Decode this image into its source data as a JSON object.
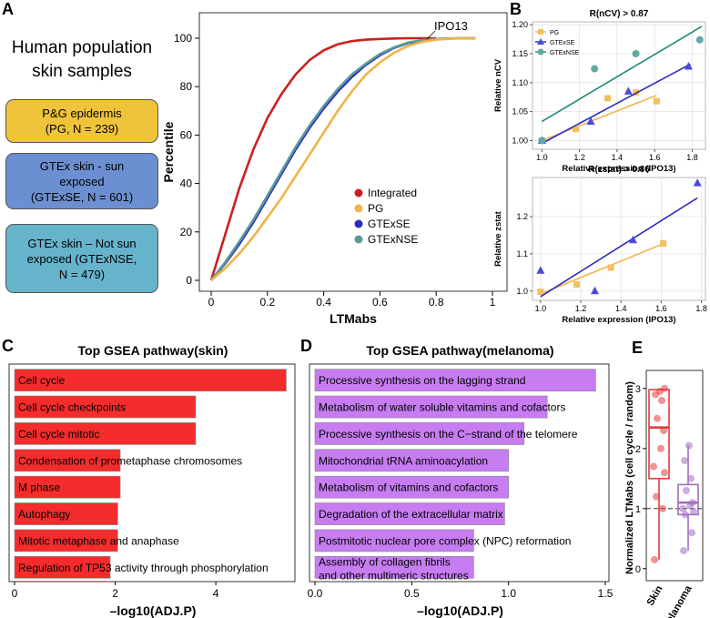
{
  "panel_letters": {
    "a": "A",
    "b": "B",
    "c": "C",
    "d": "D",
    "e": "E"
  },
  "intro": {
    "title_line1": "Human population",
    "title_line2": "skin samples",
    "boxes": [
      {
        "line1": "P&G epidermis",
        "line2": "(PG, N = 239)",
        "line3": "",
        "color": "#f0c43a"
      },
      {
        "line1": "GTEx skin - sun",
        "line2": "exposed",
        "line3": "(GTExSE, N = 601)",
        "color": "#6b8fd0"
      },
      {
        "line1": "GTEx skin – Not sun",
        "line2": "exposed (GTExNSE,",
        "line3": "N = 479)",
        "color": "#66b3cc"
      }
    ]
  },
  "colors": {
    "integrated": "#cc1f1f",
    "pg": "#f0b445",
    "gtexse": "#2b2bc2",
    "gtexnse": "#5b9a98",
    "green_fit": "#1f8a78",
    "skin": "#e03c3c",
    "melanoma": "#a46bc4",
    "bar_c": "#f52c2c",
    "bar_d": "#c77cf2"
  },
  "chart_data": [
    {
      "id": "A",
      "type": "line",
      "xlabel": "LTMabs",
      "ylabel": "Percentile",
      "xlim": [
        0,
        1
      ],
      "ylim": [
        0,
        100
      ],
      "xticks": [
        "0",
        "0.2",
        "0.4",
        "0.6",
        "0.8",
        "1"
      ],
      "yticks": [
        "0",
        "20",
        "40",
        "60",
        "80",
        "100"
      ],
      "annotation": "IPO13",
      "legend": [
        "Integrated",
        "PG",
        "GTExSE",
        "GTExNSE"
      ],
      "series": [
        {
          "name": "Integrated",
          "x": [
            0,
            0.05,
            0.1,
            0.15,
            0.2,
            0.25,
            0.3,
            0.35,
            0.4,
            0.45,
            0.5,
            0.55,
            0.6,
            0.65,
            0.7,
            0.75,
            0.8
          ],
          "y": [
            0,
            19,
            38,
            54,
            67,
            77,
            85,
            91,
            95,
            97.5,
            98.8,
            99.4,
            99.7,
            99.9,
            100,
            100,
            100
          ]
        },
        {
          "name": "GTExSE",
          "x": [
            0,
            0.05,
            0.1,
            0.15,
            0.2,
            0.25,
            0.3,
            0.35,
            0.4,
            0.45,
            0.5,
            0.55,
            0.6,
            0.65,
            0.7,
            0.75,
            0.8,
            0.85,
            0.9,
            0.94
          ],
          "y": [
            0,
            7,
            15,
            24,
            34,
            44,
            54,
            63,
            71,
            78,
            84,
            89,
            93,
            96,
            98,
            99,
            99.6,
            99.9,
            100,
            100
          ]
        },
        {
          "name": "GTExNSE",
          "x": [
            0,
            0.05,
            0.1,
            0.15,
            0.2,
            0.25,
            0.3,
            0.35,
            0.4,
            0.45,
            0.5,
            0.55,
            0.6,
            0.65,
            0.7,
            0.75,
            0.8,
            0.85,
            0.9,
            0.94
          ],
          "y": [
            0,
            7.5,
            16,
            25,
            35,
            45,
            55,
            64,
            72,
            79,
            85,
            89.5,
            93.5,
            96.2,
            98.2,
            99.2,
            99.7,
            99.9,
            100,
            100
          ]
        },
        {
          "name": "PG",
          "x": [
            0,
            0.05,
            0.1,
            0.15,
            0.2,
            0.25,
            0.3,
            0.35,
            0.4,
            0.45,
            0.5,
            0.55,
            0.6,
            0.65,
            0.7,
            0.75,
            0.8,
            0.85,
            0.9,
            0.94
          ],
          "y": [
            0,
            5,
            11,
            18,
            26,
            34,
            43,
            52,
            61,
            70,
            78,
            85,
            90,
            94,
            96.8,
            98.5,
            99.4,
            99.8,
            100,
            100
          ]
        }
      ]
    },
    {
      "id": "B-top",
      "type": "scatter",
      "title": "R(nCV) > 0.87",
      "xlabel": "Relative expression (IPO13)",
      "ylabel": "Relative nCV",
      "xlim": [
        0.95,
        1.87
      ],
      "ylim": [
        0.985,
        1.205
      ],
      "xticks": [
        1.0,
        1.2,
        1.4,
        1.6,
        1.8
      ],
      "yticks": [
        1.0,
        1.05,
        1.1,
        1.15,
        1.2
      ],
      "legend": [
        "PG",
        "GTExSE",
        "GTExNSE"
      ],
      "series": [
        {
          "name": "PG",
          "marker": "square",
          "points": [
            [
              1.0,
              1.0
            ],
            [
              1.18,
              1.02
            ],
            [
              1.35,
              1.073
            ],
            [
              1.5,
              1.083
            ],
            [
              1.61,
              1.068
            ]
          ],
          "fit": [
            [
              1.0,
              1.0
            ],
            [
              1.61,
              1.078
            ]
          ]
        },
        {
          "name": "GTExSE",
          "marker": "triangle",
          "points": [
            [
              1.0,
              1.0
            ],
            [
              1.26,
              1.033
            ],
            [
              1.46,
              1.085
            ],
            [
              1.78,
              1.128
            ]
          ],
          "fit": [
            [
              1.0,
              0.995
            ],
            [
              1.79,
              1.132
            ]
          ]
        },
        {
          "name": "GTExNSE",
          "marker": "circle",
          "points": [
            [
              1.0,
              1.0
            ],
            [
              1.28,
              1.124
            ],
            [
              1.5,
              1.15
            ],
            [
              1.84,
              1.174
            ]
          ],
          "fit": [
            [
              1.0,
              1.033
            ],
            [
              1.85,
              1.197
            ]
          ]
        }
      ]
    },
    {
      "id": "B-bottom",
      "type": "scatter",
      "title": "R(zstat) > 0.86",
      "xlabel": "Relative expression (IPO13)",
      "ylabel": "Relative zstat",
      "xlim": [
        0.96,
        1.82
      ],
      "ylim": [
        0.975,
        1.305
      ],
      "xticks": [
        1.0,
        1.2,
        1.4,
        1.6,
        1.8
      ],
      "yticks": [
        1.0,
        1.1,
        1.2
      ],
      "series": [
        {
          "name": "PG",
          "marker": "square",
          "points": [
            [
              1.0,
              0.998
            ],
            [
              1.18,
              1.018
            ],
            [
              1.35,
              1.063
            ],
            [
              1.61,
              1.128
            ]
          ],
          "fit": [
            [
              1.0,
              0.992
            ],
            [
              1.61,
              1.127
            ]
          ]
        },
        {
          "name": "GTExSE",
          "marker": "triangle",
          "points": [
            [
              1.0,
              1.055
            ],
            [
              1.27,
              1.0
            ],
            [
              1.46,
              1.137
            ],
            [
              1.78,
              1.29
            ]
          ],
          "fit": [
            [
              1.0,
              0.985
            ],
            [
              1.78,
              1.25
            ]
          ]
        }
      ]
    },
    {
      "id": "C",
      "type": "bar",
      "orientation": "horizontal",
      "title": "Top GSEA pathway(skin)",
      "xlabel": "–log10(ADJ.P)",
      "xlim": [
        0,
        5.5
      ],
      "xticks": [
        0,
        2,
        4
      ],
      "categories": [
        "Cell cycle",
        "Cell cycle checkpoints",
        "Cell cycle mitotic",
        "Condensation of prometaphase chromosomes",
        "M phase",
        "Autophagy",
        "Mitotic metaphase and anaphase",
        "Regulation of TP53 activity through phosphorylation"
      ],
      "values": [
        5.4,
        3.6,
        3.6,
        2.1,
        2.1,
        2.05,
        2.05,
        1.9
      ]
    },
    {
      "id": "D",
      "type": "bar",
      "orientation": "horizontal",
      "title": "Top GSEA pathway(melanoma)",
      "xlabel": "–log10(ADJ.P)",
      "xlim": [
        0,
        1.5
      ],
      "xticks": [
        0.0,
        0.5,
        1.0,
        1.5
      ],
      "categories": [
        "Processive synthesis on the lagging strand",
        "Metabolism of water soluble vitamins and cofactors",
        "Processive synthesis on the C−strand of the telomere",
        "Mitochondrial tRNA aminoacylation",
        "Metabolism of vitamins and cofactors",
        "Degradation of the extracellular matrix",
        "Postmitotic nuclear pore complex (NPC) reformation",
        "Assembly of collagen fibrils\nand other multimeric structures"
      ],
      "values": [
        1.45,
        1.2,
        1.08,
        1.0,
        1.0,
        0.98,
        0.82,
        0.82
      ]
    },
    {
      "id": "E",
      "type": "box",
      "ylabel": "Normalized LTMabs (cell cycle / random)",
      "ylim": [
        -0.2,
        3.3
      ],
      "yticks": [
        0,
        1,
        2,
        3
      ],
      "reference_line": 1,
      "categories": [
        "Skin",
        "Melanoma"
      ],
      "boxes": [
        {
          "name": "Skin",
          "min": 0.15,
          "q1": 1.5,
          "median": 2.35,
          "q3": 2.98,
          "max": 3.0,
          "points": [
            0.15,
            1.0,
            1.2,
            1.6,
            1.7,
            2.0,
            2.3,
            2.5,
            2.8,
            2.9,
            2.95,
            3.0
          ]
        },
        {
          "name": "Melanoma",
          "min": 0.3,
          "q1": 0.9,
          "median": 1.1,
          "q3": 1.4,
          "max": 2.05,
          "points": [
            0.3,
            0.6,
            0.9,
            0.95,
            1.0,
            1.05,
            1.1,
            1.3,
            1.5,
            1.8,
            2.05
          ]
        }
      ]
    }
  ]
}
